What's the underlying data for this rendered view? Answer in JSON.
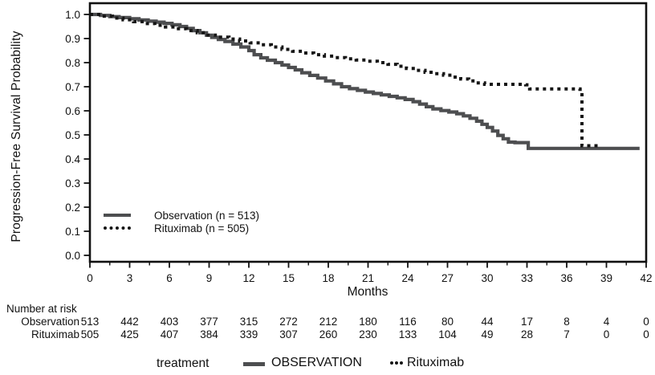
{
  "chart_data": {
    "type": "line",
    "variant": "kaplan_meier_step",
    "title": "",
    "xlabel": "Months",
    "ylabel": "Progression-Free Survival Probability",
    "xlim": [
      0,
      42
    ],
    "ylim": [
      0.0,
      1.0
    ],
    "grid": false,
    "x_ticks": [
      0,
      3,
      6,
      9,
      12,
      15,
      18,
      21,
      24,
      27,
      30,
      33,
      36,
      39,
      42
    ],
    "x_minor_tick_step": 1.5,
    "y_ticks": [
      1.0,
      0.9,
      0.8,
      0.7,
      0.6,
      0.5,
      0.4,
      0.3,
      0.2,
      0.1,
      0.0
    ],
    "legend_position": "inside-lower-left",
    "series": [
      {
        "name": "Observation",
        "legend_label": "Observation (n = 513)",
        "n": 513,
        "style": "solid",
        "color": "#4d4e50",
        "stroke_width": 4.2,
        "points": [
          [
            0,
            1.0
          ],
          [
            0.8,
            0.996
          ],
          [
            1.5,
            0.991
          ],
          [
            2.2,
            0.987
          ],
          [
            3,
            0.982
          ],
          [
            3.7,
            0.977
          ],
          [
            4.4,
            0.972
          ],
          [
            5,
            0.968
          ],
          [
            5.6,
            0.963
          ],
          [
            6.2,
            0.957
          ],
          [
            6.8,
            0.95
          ],
          [
            7.3,
            0.942
          ],
          [
            7.8,
            0.933
          ],
          [
            8.3,
            0.924
          ],
          [
            8.8,
            0.914
          ],
          [
            9.2,
            0.905
          ],
          [
            9.7,
            0.896
          ],
          [
            10.2,
            0.888
          ],
          [
            10.8,
            0.877
          ],
          [
            11.4,
            0.865
          ],
          [
            12,
            0.85
          ],
          [
            12.4,
            0.833
          ],
          [
            12.9,
            0.82
          ],
          [
            13.4,
            0.81
          ],
          [
            14,
            0.8
          ],
          [
            14.5,
            0.79
          ],
          [
            15,
            0.78
          ],
          [
            15.5,
            0.77
          ],
          [
            16,
            0.758
          ],
          [
            16.6,
            0.747
          ],
          [
            17.2,
            0.736
          ],
          [
            17.8,
            0.724
          ],
          [
            18.4,
            0.712
          ],
          [
            19,
            0.7
          ],
          [
            19.6,
            0.692
          ],
          [
            20.2,
            0.685
          ],
          [
            20.8,
            0.678
          ],
          [
            21.4,
            0.672
          ],
          [
            22,
            0.666
          ],
          [
            22.6,
            0.66
          ],
          [
            23.2,
            0.654
          ],
          [
            23.8,
            0.647
          ],
          [
            24.4,
            0.638
          ],
          [
            24.9,
            0.628
          ],
          [
            25.4,
            0.617
          ],
          [
            25.9,
            0.608
          ],
          [
            26.5,
            0.601
          ],
          [
            27.1,
            0.595
          ],
          [
            27.7,
            0.588
          ],
          [
            28.2,
            0.579
          ],
          [
            28.7,
            0.569
          ],
          [
            29.2,
            0.557
          ],
          [
            29.6,
            0.544
          ],
          [
            30,
            0.531
          ],
          [
            30.4,
            0.516
          ],
          [
            30.8,
            0.498
          ],
          [
            31.2,
            0.484
          ],
          [
            31.6,
            0.47
          ],
          [
            32.1,
            0.468
          ],
          [
            33.1,
            0.444
          ],
          [
            41.5,
            0.444
          ]
        ]
      },
      {
        "name": "Rituximab",
        "legend_label": "Rituximab (n = 505)",
        "n": 505,
        "style": "dotted",
        "color": "#161616",
        "stroke_width": 4,
        "points": [
          [
            0,
            1.0
          ],
          [
            0.9,
            0.993
          ],
          [
            1.7,
            0.985
          ],
          [
            2.5,
            0.978
          ],
          [
            3.3,
            0.97
          ],
          [
            4.1,
            0.962
          ],
          [
            4.9,
            0.955
          ],
          [
            5.7,
            0.948
          ],
          [
            6.5,
            0.941
          ],
          [
            7.3,
            0.933
          ],
          [
            8.1,
            0.924
          ],
          [
            8.9,
            0.914
          ],
          [
            9.7,
            0.906
          ],
          [
            10.5,
            0.898
          ],
          [
            11.3,
            0.89
          ],
          [
            12.1,
            0.882
          ],
          [
            12.9,
            0.874
          ],
          [
            13.7,
            0.865
          ],
          [
            14.5,
            0.855
          ],
          [
            15.3,
            0.847
          ],
          [
            16.1,
            0.84
          ],
          [
            16.9,
            0.833
          ],
          [
            17.7,
            0.827
          ],
          [
            18.5,
            0.821
          ],
          [
            19.3,
            0.816
          ],
          [
            20.1,
            0.811
          ],
          [
            20.9,
            0.806
          ],
          [
            21.7,
            0.8
          ],
          [
            22.5,
            0.793
          ],
          [
            23.2,
            0.785
          ],
          [
            23.9,
            0.776
          ],
          [
            24.6,
            0.768
          ],
          [
            25.3,
            0.76
          ],
          [
            26,
            0.754
          ],
          [
            26.7,
            0.748
          ],
          [
            27.4,
            0.74
          ],
          [
            28,
            0.732
          ],
          [
            28.6,
            0.724
          ],
          [
            29.2,
            0.716
          ],
          [
            29.8,
            0.71
          ],
          [
            32.9,
            0.708
          ],
          [
            33.2,
            0.691
          ],
          [
            37,
            0.689
          ],
          [
            37.15,
            0.455
          ],
          [
            38.4,
            0.449
          ]
        ]
      }
    ]
  },
  "inner_legend": {
    "items": [
      {
        "label": "Observation (n = 513)",
        "style": "solid"
      },
      {
        "label": "Rituximab (n = 505)",
        "style": "dotted"
      }
    ]
  },
  "risk_table": {
    "title": "Number at risk",
    "columns_months": [
      0,
      3,
      6,
      9,
      12,
      15,
      18,
      21,
      24,
      27,
      30,
      33,
      36,
      39,
      42
    ],
    "rows": [
      {
        "label": "Observation",
        "values": [
          513,
          442,
          403,
          377,
          315,
          272,
          212,
          180,
          116,
          80,
          44,
          17,
          8,
          4,
          0
        ]
      },
      {
        "label": "Rituximab",
        "values": [
          505,
          425,
          407,
          384,
          339,
          307,
          260,
          230,
          133,
          104,
          49,
          28,
          7,
          0,
          0
        ]
      }
    ]
  },
  "bottom_legend": {
    "title": "treatment",
    "items": [
      {
        "label": "OBSERVATION",
        "style": "solid"
      },
      {
        "label": "Rituximab",
        "style": "dotted"
      }
    ]
  },
  "colors": {
    "observation_line": "#4d4e50",
    "rituximab_line": "#161616",
    "axis": "#111111",
    "text": "#111111"
  }
}
